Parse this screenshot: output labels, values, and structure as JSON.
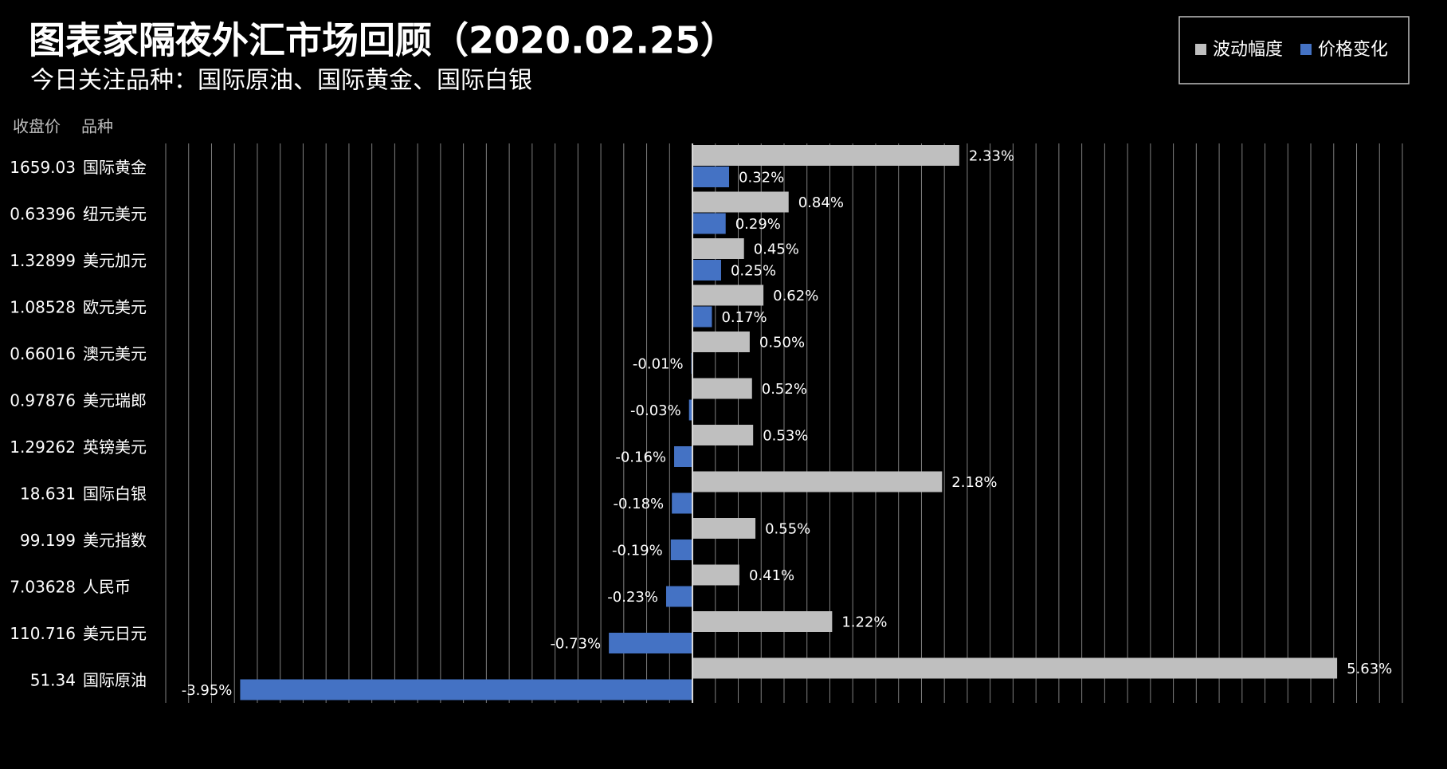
{
  "chart_data": {
    "type": "bar",
    "orientation": "horizontal",
    "title": "图表家隔夜外汇市场回顾（2020.02.25）",
    "subtitle": "今日关注品种：国际原油、国际黄金、国际白银",
    "column_headers": [
      "收盘价",
      "品种"
    ],
    "closes": [
      "1659.03",
      "0.63396",
      "1.32899",
      "1.08528",
      "0.66016",
      "0.97876",
      "1.29262",
      "18.631",
      "99.199",
      "7.03628",
      "110.716",
      "51.34"
    ],
    "categories": [
      "国际黄金",
      "纽元美元",
      "美元加元",
      "欧元美元",
      "澳元美元",
      "美元瑞郎",
      "英镑美元",
      "国际白银",
      "美元指数",
      "人民币",
      "美元日元",
      "国际原油"
    ],
    "series": [
      {
        "name": "波动幅度",
        "color": "#bfbfbf",
        "values": [
          2.33,
          0.84,
          0.45,
          0.62,
          0.5,
          0.52,
          0.53,
          2.18,
          0.55,
          0.41,
          1.22,
          5.63
        ],
        "value_labels": [
          "2.33%",
          "0.84%",
          "0.45%",
          "0.62%",
          "0.50%",
          "0.52%",
          "0.53%",
          "2.18%",
          "0.55%",
          "0.41%",
          "1.22%",
          "5.63%"
        ]
      },
      {
        "name": "价格变化",
        "color": "#4472c4",
        "values": [
          0.32,
          0.29,
          0.25,
          0.17,
          -0.01,
          -0.03,
          -0.16,
          -0.18,
          -0.19,
          -0.23,
          -0.73,
          -3.95
        ],
        "value_labels": [
          "0.32%",
          "0.29%",
          "0.25%",
          "0.17%",
          "-0.01%",
          "-0.03%",
          "-0.16%",
          "-0.18%",
          "-0.19%",
          "-0.23%",
          "-0.73%",
          "-3.95%"
        ]
      }
    ],
    "xlim": [
      -4.6,
      6.2
    ],
    "xticks": [
      -4.6,
      -4.4,
      -4.2,
      -4,
      -3.8,
      -3.6,
      -3.4,
      -3.2,
      -3,
      -2.8,
      -2.6,
      -2.4,
      -2.2,
      -2,
      -1.8,
      -1.6,
      -1.4,
      -1.2,
      -1,
      -0.8,
      -0.6,
      -0.4,
      -0.2,
      0,
      0.2,
      0.4,
      0.6,
      0.8,
      1,
      1.2,
      1.4,
      1.6,
      1.8,
      2,
      2.2,
      2.4,
      2.6,
      2.8,
      3,
      3.2,
      3.4,
      3.6,
      3.8,
      4,
      4.2,
      4.4,
      4.6,
      4.8,
      5,
      5.2,
      5.4,
      5.6,
      5.8,
      6,
      6.2
    ],
    "grid": true,
    "legend": "top-right"
  }
}
